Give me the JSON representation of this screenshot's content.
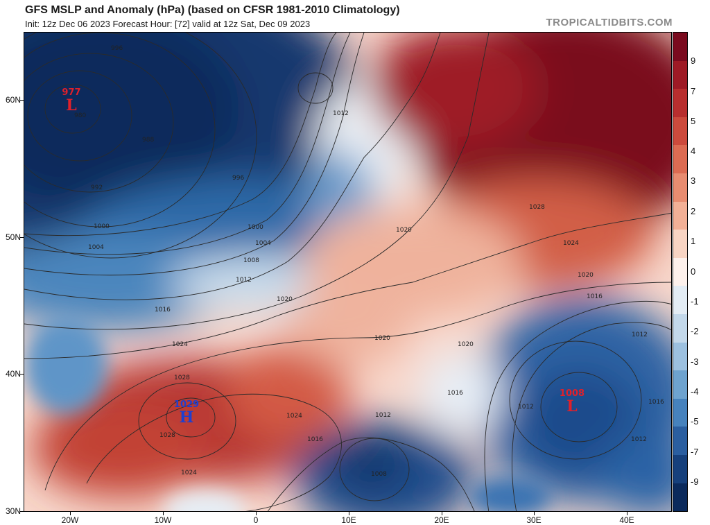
{
  "header": {
    "title": "GFS MSLP and Anomaly (hPa) (based on CFSR 1981-2010 Climatology)",
    "subtitle": "Init: 12z Dec 06 2023   Forecast Hour: [72]   valid at 12z Sat, Dec 09 2023",
    "credit": "TROPICALTIDBITS.COM"
  },
  "axes": {
    "lat_labels": [
      "60N",
      "50N",
      "40N",
      "30N"
    ],
    "lon_labels": [
      "20W",
      "10W",
      "0",
      "10E",
      "20E",
      "30E",
      "40E"
    ]
  },
  "colorbar": {
    "labels": [
      "9",
      "7",
      "5",
      "4",
      "3",
      "2",
      "1",
      "0",
      "-1",
      "-2",
      "-3",
      "-4",
      "-5",
      "-7",
      "-9"
    ],
    "colors": [
      "#7a0a1e",
      "#9e1a25",
      "#b82e2e",
      "#cc4a3c",
      "#dc6b52",
      "#e88c70",
      "#f2b096",
      "#f8d4c3",
      "#fdf1ec",
      "#e3ecf4",
      "#c3d8ea",
      "#9cc0df",
      "#6ea3cf",
      "#4682bd",
      "#2a5ea0",
      "#16407c",
      "#0b2a5c"
    ]
  },
  "systems": [
    {
      "value": "977",
      "letter": "L",
      "type": "low"
    },
    {
      "value": "1029",
      "letter": "H",
      "type": "high"
    },
    {
      "value": "1008",
      "letter": "L",
      "type": "low"
    }
  ],
  "isobar_labels": [
    "996",
    "980",
    "988",
    "992",
    "996",
    "1000",
    "1000",
    "1004",
    "1004",
    "1008",
    "1012",
    "1016",
    "1012",
    "1020",
    "1020",
    "1024",
    "1028",
    "1028",
    "1024",
    "1016",
    "1016",
    "1012",
    "1008",
    "1020",
    "1024",
    "1028",
    "1020",
    "1016",
    "1012",
    "1012",
    "1016",
    "1012",
    "1020",
    "1024"
  ],
  "colors": {
    "low_label": "#e0202a",
    "high_label": "#1f3fcf"
  }
}
